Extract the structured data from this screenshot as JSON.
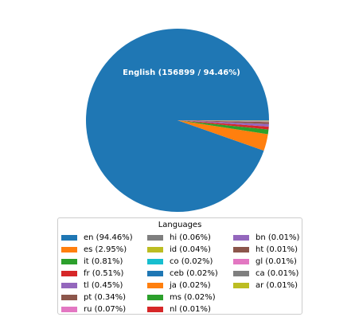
{
  "chart_data": {
    "type": "pie",
    "slice_label": "English (156899 / 94.46%)",
    "legend": {
      "title": "Languages",
      "placement": "bottom"
    },
    "slices": [
      {
        "label": "en (94.46%)",
        "value": 94.46,
        "color": "#1f77b4"
      },
      {
        "label": "es (2.95%)",
        "value": 2.95,
        "color": "#ff7f0e"
      },
      {
        "label": "it (0.81%)",
        "value": 0.81,
        "color": "#2ca02c"
      },
      {
        "label": "fr (0.51%)",
        "value": 0.51,
        "color": "#d62728"
      },
      {
        "label": "tl (0.45%)",
        "value": 0.45,
        "color": "#9467bd"
      },
      {
        "label": "pt (0.34%)",
        "value": 0.34,
        "color": "#8c564b"
      },
      {
        "label": "ru (0.07%)",
        "value": 0.07,
        "color": "#e377c2"
      },
      {
        "label": "hi (0.06%)",
        "value": 0.06,
        "color": "#7f7f7f"
      },
      {
        "label": "id (0.04%)",
        "value": 0.04,
        "color": "#bcbd22"
      },
      {
        "label": "co (0.02%)",
        "value": 0.02,
        "color": "#17becf"
      },
      {
        "label": "ceb (0.02%)",
        "value": 0.02,
        "color": "#1f77b4"
      },
      {
        "label": "ja (0.02%)",
        "value": 0.02,
        "color": "#ff7f0e"
      },
      {
        "label": "ms (0.02%)",
        "value": 0.02,
        "color": "#2ca02c"
      },
      {
        "label": "nl (0.01%)",
        "value": 0.01,
        "color": "#d62728"
      },
      {
        "label": "bn (0.01%)",
        "value": 0.01,
        "color": "#9467bd"
      },
      {
        "label": "ht (0.01%)",
        "value": 0.01,
        "color": "#8c564b"
      },
      {
        "label": "gl (0.01%)",
        "value": 0.01,
        "color": "#e377c2"
      },
      {
        "label": "ca (0.01%)",
        "value": 0.01,
        "color": "#7f7f7f"
      },
      {
        "label": "ar (0.01%)",
        "value": 0.01,
        "color": "#bcbd22"
      }
    ]
  }
}
